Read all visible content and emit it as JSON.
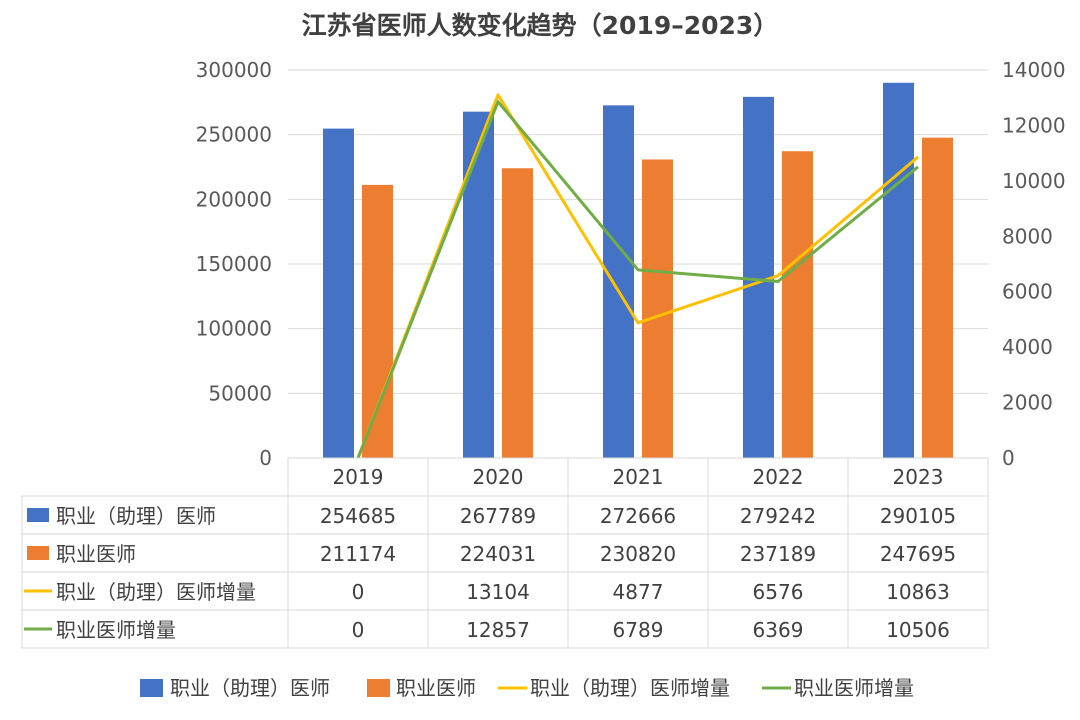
{
  "chart_data": {
    "type": "bar",
    "title": "江苏省医师人数变化趋势（2019–2023）",
    "categories": [
      "2019",
      "2020",
      "2021",
      "2022",
      "2023"
    ],
    "y_left": {
      "min": 0,
      "max": 300000,
      "ticks": [
        "0",
        "50000",
        "100000",
        "150000",
        "200000",
        "250000",
        "300000"
      ]
    },
    "y_right": {
      "min": 0,
      "max": 14000,
      "ticks": [
        "0",
        "2000",
        "4000",
        "6000",
        "8000",
        "10000",
        "12000",
        "14000"
      ]
    },
    "grid": true,
    "legend_position": "bottom",
    "data_table": true,
    "series": [
      {
        "name": "职业（助理）医师",
        "kind": "bar",
        "axis": "left",
        "color": "#4472C4",
        "values": [
          254685,
          267789,
          272666,
          279242,
          290105
        ]
      },
      {
        "name": "职业医师",
        "kind": "bar",
        "axis": "left",
        "color": "#ED7D31",
        "values": [
          211174,
          224031,
          230820,
          237189,
          247695
        ]
      },
      {
        "name": "职业（助理）医师增量",
        "kind": "line",
        "axis": "right",
        "color": "#FFC000",
        "values": [
          0,
          13104,
          4877,
          6576,
          10863
        ]
      },
      {
        "name": "职业医师增量",
        "kind": "line",
        "axis": "right",
        "color": "#70AD47",
        "values": [
          0,
          12857,
          6789,
          6369,
          10506
        ]
      }
    ]
  }
}
